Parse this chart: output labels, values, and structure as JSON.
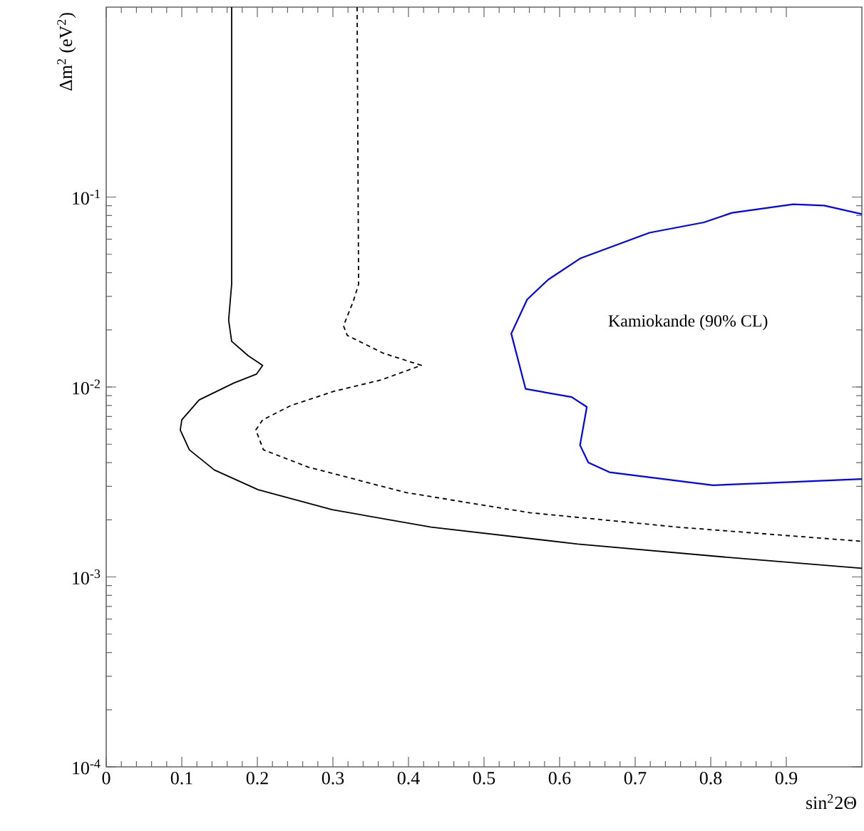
{
  "chart_data": {
    "type": "line",
    "xlabel": "sin$^{2}$2Θ",
    "ylabel": "Δm$^{2}$ (eV$^{2}$)",
    "log": "y",
    "xlim": [
      0,
      1
    ],
    "ylim": [
      0.0001,
      1
    ],
    "xticks": [
      0,
      0.1,
      0.2,
      0.3,
      0.4,
      0.5,
      0.6,
      0.7,
      0.8,
      0.9
    ],
    "yticks": [
      {
        "value": 0.0001,
        "label": "10$^{-4}$"
      },
      {
        "value": 0.001,
        "label": "10$^{-3}$"
      },
      {
        "value": 0.01,
        "label": "10$^{-2}$"
      },
      {
        "value": 0.1,
        "label": "10$^{-1}$"
      }
    ],
    "grid": false,
    "series": [
      {
        "color": "#000000",
        "line_style": "solid",
        "x": [
          0.166,
          0.166,
          0.162,
          0.166,
          0.188,
          0.207,
          0.199,
          0.169,
          0.123,
          0.1,
          0.098,
          0.11,
          0.143,
          0.201,
          0.299,
          0.43,
          0.624,
          0.821,
          1.0
        ],
        "values": [
          1,
          0.0348,
          0.0225,
          0.0174,
          0.0146,
          0.013,
          0.0117,
          0.0105,
          0.00855,
          0.00671,
          0.00594,
          0.00467,
          0.00366,
          0.00288,
          0.00226,
          0.00183,
          0.00149,
          0.00127,
          0.00111
        ]
      },
      {
        "color": "#000000",
        "line_style": "dashed",
        "x": [
          0.332,
          0.334,
          0.327,
          0.314,
          0.319,
          0.366,
          0.417,
          0.364,
          0.301,
          0.244,
          0.207,
          0.198,
          0.208,
          0.267,
          0.397,
          0.56,
          0.756,
          1.0
        ],
        "values": [
          1,
          0.0348,
          0.0283,
          0.021,
          0.0187,
          0.0151,
          0.013,
          0.0109,
          0.00948,
          0.00798,
          0.00671,
          0.00594,
          0.00467,
          0.00379,
          0.00278,
          0.00218,
          0.00183,
          0.00154
        ]
      },
      {
        "color": "#0000ff",
        "line_style": "solid",
        "x": [
          1.0,
          0.95,
          0.909,
          0.828,
          0.791,
          0.719,
          0.628,
          0.585,
          0.557,
          0.536,
          0.555,
          0.616,
          0.636,
          0.627,
          0.638,
          0.666,
          0.803,
          0.872,
          1.0
        ],
        "values": [
          0.0813,
          0.0902,
          0.0916,
          0.0826,
          0.0736,
          0.0649,
          0.0477,
          0.0368,
          0.0289,
          0.0191,
          0.00977,
          0.00885,
          0.00785,
          0.00494,
          0.004,
          0.00356,
          0.00304,
          0.00312,
          0.00328
        ]
      }
    ],
    "annotations": [
      "Kamiokande (90% CL)"
    ]
  }
}
